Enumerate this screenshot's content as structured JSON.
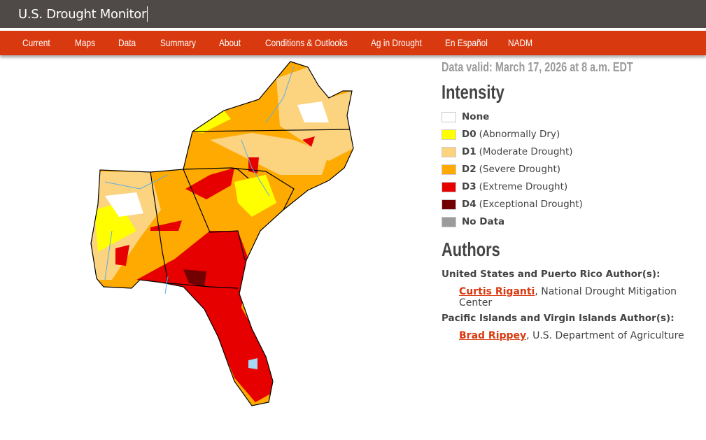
{
  "header": {
    "title": "U.S. Drought Monitor"
  },
  "nav": [
    "Current",
    "Maps",
    "Data",
    "Summary",
    "About",
    "Conditions & Outlooks",
    "Ag in Drought",
    "En Español",
    "NADM"
  ],
  "data_valid": "Data valid: March 17, 2026 at 8 a.m. EDT",
  "intensity": {
    "heading": "Intensity",
    "items": [
      {
        "code": "",
        "label": "None",
        "color": "#ffffff"
      },
      {
        "code": "D0",
        "label": "(Abnormally Dry)",
        "color": "#ffff00"
      },
      {
        "code": "D1",
        "label": "(Moderate Drought)",
        "color": "#fcd37f"
      },
      {
        "code": "D2",
        "label": "(Severe Drought)",
        "color": "#ffaa00"
      },
      {
        "code": "D3",
        "label": "(Extreme Drought)",
        "color": "#e60000"
      },
      {
        "code": "D4",
        "label": "(Exceptional Drought)",
        "color": "#730000"
      },
      {
        "code": "",
        "label": "No Data",
        "color": "#9b9b9b"
      }
    ]
  },
  "authors": {
    "heading": "Authors",
    "us_heading": "United States and Puerto Rico Author(s):",
    "us_name": "Curtis Riganti",
    "us_org": ", National Drought Mitigation Center",
    "pi_heading": "Pacific Islands and Virgin Islands Author(s):",
    "pi_name": "Brad Rippey",
    "pi_org": ", U.S. Department of Agriculture"
  },
  "colors": {
    "nav": "#d9390f",
    "topbar": "#4f4a47"
  }
}
